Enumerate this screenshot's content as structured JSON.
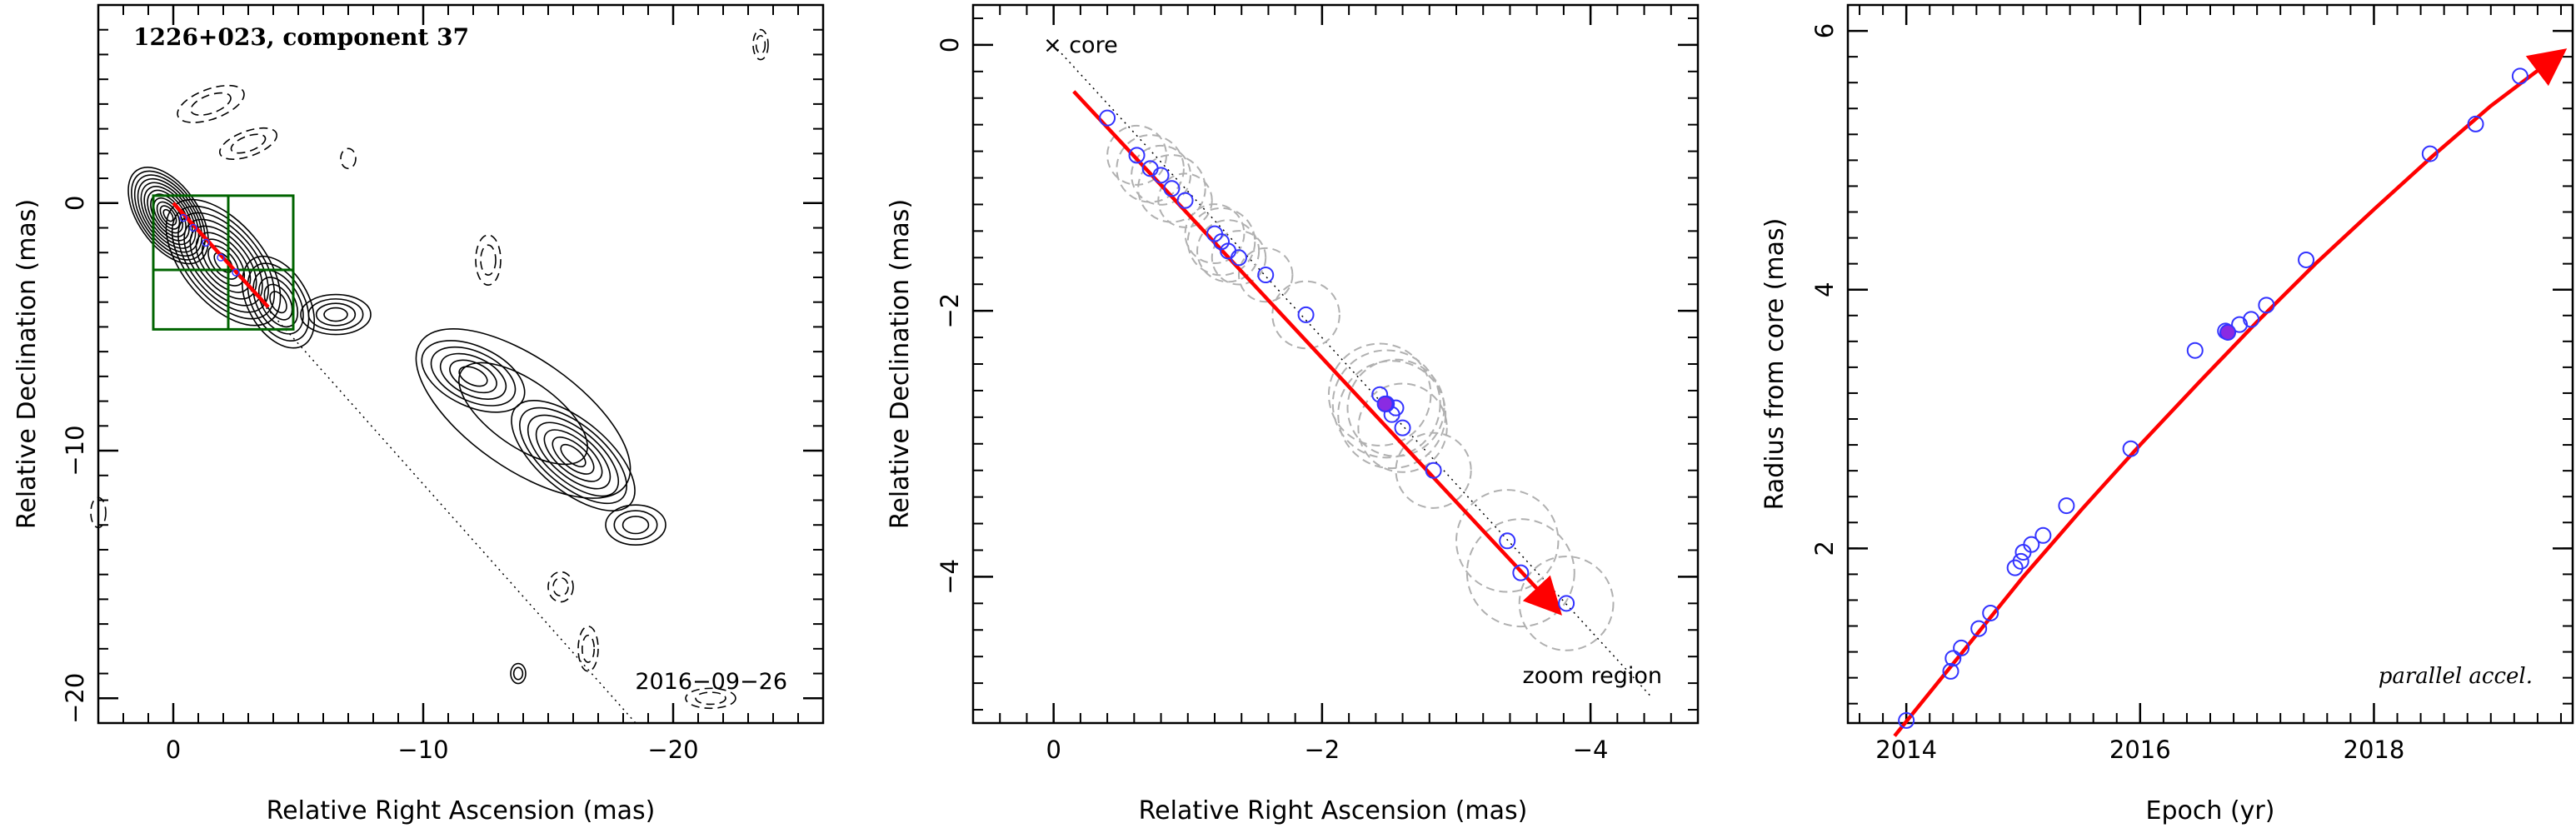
{
  "chart_data": [
    {
      "type": "contour",
      "title": "1226+023, component 37",
      "xlabel": "Relative Right Ascension (mas)",
      "ylabel": "Relative Declination (mas)",
      "xlim": [
        3,
        -26
      ],
      "ylim": [
        -21,
        8
      ],
      "xticks": [
        0,
        -10,
        -20
      ],
      "yticks": [
        0,
        -10,
        -20
      ],
      "xtick_labels": [
        "0",
        "−10",
        "−20"
      ],
      "ytick_labels": [
        "0",
        "−10",
        "−20"
      ],
      "epoch_label": "2016−09−26",
      "jet_direction_line": {
        "from": [
          0,
          0
        ],
        "to": [
          -18.5,
          -21
        ]
      },
      "zoom_box": {
        "x": [
          0.8,
          -4.8
        ],
        "y": [
          0.3,
          -5.1
        ],
        "grid_x": [
          -2.2
        ],
        "grid_y": [
          -2.7
        ]
      },
      "trajectory": {
        "from": [
          0,
          0
        ],
        "to": [
          -3.8,
          -4.2
        ],
        "color": "#ff0000"
      },
      "trajectory_points": [
        [
          -0.4,
          -0.6
        ],
        [
          -0.8,
          -1.0
        ],
        [
          -1.3,
          -1.6
        ],
        [
          -1.9,
          -2.2
        ],
        [
          -2.5,
          -2.8
        ]
      ]
    },
    {
      "type": "scatter",
      "xlabel": "Relative Right Ascension (mas)",
      "ylabel": "Relative Declination (mas)",
      "xlim": [
        0.6,
        -4.8
      ],
      "ylim": [
        -5.1,
        0.3
      ],
      "xticks": [
        0,
        -2,
        -4
      ],
      "yticks": [
        0,
        -2,
        -4
      ],
      "xtick_labels": [
        "0",
        "−2",
        "−4"
      ],
      "ytick_labels": [
        "0",
        "−2",
        "−4"
      ],
      "core_label": "× core",
      "zoom_label": "zoom region",
      "direction_line": {
        "from": [
          0,
          0
        ],
        "to": [
          -4.45,
          -4.9
        ]
      },
      "trajectory": {
        "from": [
          -0.15,
          -0.35
        ],
        "to": [
          -3.75,
          -4.25
        ],
        "color": "#ff0000"
      },
      "points": [
        {
          "x": -0.4,
          "y": -0.55,
          "r": 0.0
        },
        {
          "x": -0.62,
          "y": -0.83,
          "r": 0.22
        },
        {
          "x": -0.72,
          "y": -0.93,
          "r": 0.25
        },
        {
          "x": -0.8,
          "y": -0.98,
          "r": 0.22
        },
        {
          "x": -0.88,
          "y": -1.08,
          "r": 0.25
        },
        {
          "x": -0.98,
          "y": -1.17,
          "r": 0.2
        },
        {
          "x": -1.2,
          "y": -1.42,
          "r": 0.22
        },
        {
          "x": -1.25,
          "y": -1.48,
          "r": 0.25
        },
        {
          "x": -1.3,
          "y": -1.55,
          "r": 0.23
        },
        {
          "x": -1.38,
          "y": -1.6,
          "r": 0.2
        },
        {
          "x": -1.58,
          "y": -1.73,
          "r": 0.2
        },
        {
          "x": -1.88,
          "y": -2.03,
          "r": 0.25
        },
        {
          "x": -2.43,
          "y": -2.63,
          "r": 0.38
        },
        {
          "x": -2.48,
          "y": -2.7,
          "r": 0.4
        },
        {
          "x": -2.55,
          "y": -2.73,
          "r": 0.36
        },
        {
          "x": -2.52,
          "y": -2.78,
          "r": 0.4
        },
        {
          "x": -2.6,
          "y": -2.88,
          "r": 0.33
        },
        {
          "x": -2.83,
          "y": -3.2,
          "r": 0.28
        },
        {
          "x": -3.38,
          "y": -3.73,
          "r": 0.38
        },
        {
          "x": -3.48,
          "y": -3.97,
          "r": 0.4
        },
        {
          "x": -3.82,
          "y": -4.2,
          "r": 0.35
        }
      ],
      "highlight_point": {
        "x": -2.47,
        "y": -2.7
      }
    },
    {
      "type": "scatter",
      "xlabel": "Epoch (yr)",
      "ylabel": "Radius from core (mas)",
      "xlim": [
        2013.5,
        2019.7
      ],
      "ylim": [
        0.65,
        6.2
      ],
      "xticks": [
        2014,
        2016,
        2018
      ],
      "yticks": [
        2,
        4,
        6
      ],
      "xtick_labels": [
        "2014",
        "2016",
        "2018"
      ],
      "ytick_labels": [
        "2",
        "4",
        "6"
      ],
      "note": "parallel accel.",
      "fit_curve": [
        [
          2013.9,
          0.55
        ],
        [
          2014.5,
          1.22
        ],
        [
          2015.0,
          1.78
        ],
        [
          2015.5,
          2.3
        ],
        [
          2016.0,
          2.8
        ],
        [
          2016.5,
          3.28
        ],
        [
          2017.0,
          3.75
        ],
        [
          2017.5,
          4.2
        ],
        [
          2018.0,
          4.62
        ],
        [
          2018.5,
          5.03
        ],
        [
          2019.0,
          5.42
        ],
        [
          2019.6,
          5.83
        ]
      ],
      "points": [
        {
          "x": 2014.0,
          "y": 0.67
        },
        {
          "x": 2014.38,
          "y": 1.05
        },
        {
          "x": 2014.4,
          "y": 1.15
        },
        {
          "x": 2014.47,
          "y": 1.23
        },
        {
          "x": 2014.62,
          "y": 1.38
        },
        {
          "x": 2014.72,
          "y": 1.5
        },
        {
          "x": 2014.93,
          "y": 1.85
        },
        {
          "x": 2014.98,
          "y": 1.9
        },
        {
          "x": 2015.0,
          "y": 1.97
        },
        {
          "x": 2015.07,
          "y": 2.03
        },
        {
          "x": 2015.17,
          "y": 2.1
        },
        {
          "x": 2015.37,
          "y": 2.33
        },
        {
          "x": 2015.92,
          "y": 2.77
        },
        {
          "x": 2016.47,
          "y": 3.53
        },
        {
          "x": 2016.73,
          "y": 3.68
        },
        {
          "x": 2016.85,
          "y": 3.73
        },
        {
          "x": 2016.95,
          "y": 3.77
        },
        {
          "x": 2017.08,
          "y": 3.88
        },
        {
          "x": 2017.42,
          "y": 4.23
        },
        {
          "x": 2018.48,
          "y": 5.05
        },
        {
          "x": 2018.87,
          "y": 5.28
        },
        {
          "x": 2019.25,
          "y": 5.65
        }
      ],
      "highlight_point": {
        "x": 2016.75,
        "y": 3.67
      }
    }
  ]
}
